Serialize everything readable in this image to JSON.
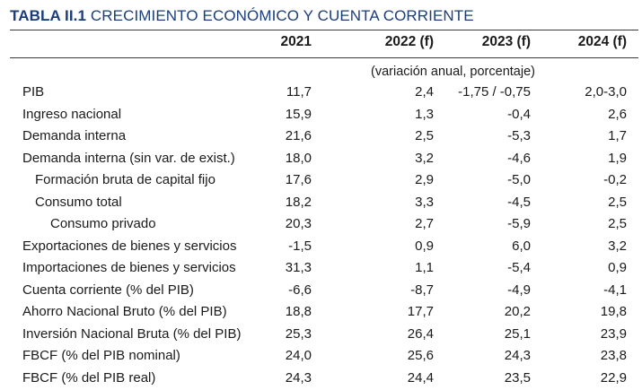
{
  "title": {
    "code": "TABLA II.1",
    "text": "CRECIMIENTO ECONÓMICO Y CUENTA CORRIENTE"
  },
  "columns": [
    "2021",
    "2022 (f)",
    "2023 (f)",
    "2024 (f)"
  ],
  "unit_note": "(variación anual, porcentaje)",
  "rows": [
    {
      "label": "PIB",
      "indent": 0,
      "values": [
        "11,7",
        "2,4",
        "-1,75 / -0,75",
        "2,0-3,0"
      ]
    },
    {
      "label": "Ingreso nacional",
      "indent": 0,
      "values": [
        "15,9",
        "1,3",
        "-0,4",
        "2,6"
      ]
    },
    {
      "label": "Demanda interna",
      "indent": 0,
      "values": [
        "21,6",
        "2,5",
        "-5,3",
        "1,7"
      ]
    },
    {
      "label": "Demanda interna (sin var. de exist.)",
      "indent": 0,
      "values": [
        "18,0",
        "3,2",
        "-4,6",
        "1,9"
      ]
    },
    {
      "label": "Formación bruta de capital fijo",
      "indent": 1,
      "values": [
        "17,6",
        "2,9",
        "-5,0",
        "-0,2"
      ]
    },
    {
      "label": "Consumo total",
      "indent": 1,
      "values": [
        "18,2",
        "3,3",
        "-4,5",
        "2,5"
      ]
    },
    {
      "label": "Consumo privado",
      "indent": 2,
      "values": [
        "20,3",
        "2,7",
        "-5,9",
        "2,5"
      ]
    },
    {
      "label": "Exportaciones de bienes y servicios",
      "indent": 0,
      "values": [
        "-1,5",
        "0,9",
        "6,0",
        "3,2"
      ]
    },
    {
      "label": "Importaciones de bienes y servicios",
      "indent": 0,
      "values": [
        "31,3",
        "1,1",
        "-5,4",
        "0,9"
      ]
    },
    {
      "label": "Cuenta corriente (% del PIB)",
      "indent": 0,
      "values": [
        "-6,6",
        "-8,7",
        "-4,9",
        "-4,1"
      ]
    },
    {
      "label": "Ahorro Nacional Bruto (% del PIB)",
      "indent": 0,
      "values": [
        "18,8",
        "17,7",
        "20,2",
        "19,8"
      ]
    },
    {
      "label": "Inversión Nacional Bruta (% del PIB)",
      "indent": 0,
      "values": [
        "25,3",
        "26,4",
        "25,1",
        "23,9"
      ]
    },
    {
      "label": "FBCF (% del PIB nominal)",
      "indent": 0,
      "values": [
        "24,0",
        "25,6",
        "24,3",
        "23,8"
      ]
    },
    {
      "label": "FBCF (% del PIB real)",
      "indent": 0,
      "values": [
        "24,3",
        "24,4",
        "23,5",
        "22,9"
      ]
    }
  ]
}
